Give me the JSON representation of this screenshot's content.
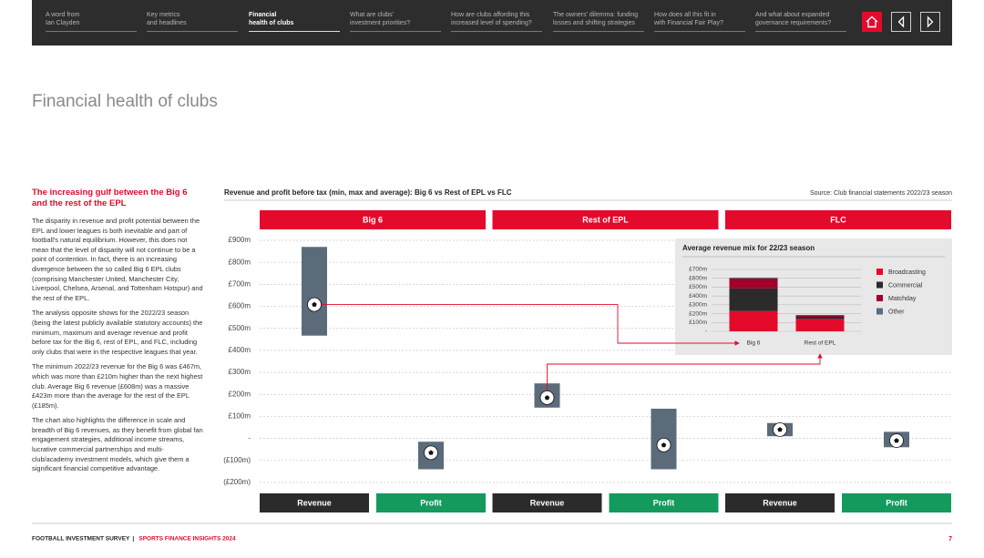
{
  "nav": {
    "items": [
      [
        "A word from",
        "Ian Clayden"
      ],
      [
        "Key metrics",
        "and headlines"
      ],
      [
        "Financial",
        "health of clubs"
      ],
      [
        "What are clubs'",
        "investment priorities?"
      ],
      [
        "How are clubs affording this",
        "increased level of spending?"
      ],
      [
        "The owners' dilemma: funding",
        "losses and shifting strategies"
      ],
      [
        "How does all this fit in",
        "with Financial Fair Play?"
      ],
      [
        "And what about expanded",
        "governance requirements?"
      ]
    ],
    "active": 2
  },
  "page_title": "Financial health of clubs",
  "sidebar": {
    "heading": "The increasing gulf between the Big 6 and the rest of the EPL",
    "paragraphs": [
      "The disparity in revenue and profit potential between the EPL and lower leagues is both inevitable and part of football's natural equilibrium. However, this does not mean that the level of disparity will not continue to be a point of contention. In fact, there is an increasing divergence between the so called Big 6 EPL clubs (comprising Manchester United, Manchester City, Liverpool, Chelsea, Arsenal, and Tottenham Hotspur) and the rest of the EPL.",
      "The analysis opposite shows for the 2022/23 season (being the latest publicly available statutory accounts) the minimum, maximum and average revenue and profit before tax for the Big 6, rest of EPL, and FLC, including only clubs that were in the respective leagues that year.",
      "The minimum 2022/23 revenue for the Big 6 was £467m, which was more than £210m higher than the next highest club. Average Big 6 revenue (£608m) was a massive £423m more than the average for the rest of the EPL (£185m).",
      "The chart also highlights the difference in scale and breadth of Big 6 revenues, as they benefit from global fan engagement strategies, additional income streams, lucrative commercial partnerships and multi-club/academy investment models, which give them a significant financial competitive advantage."
    ]
  },
  "chart_data": [
    {
      "type": "range",
      "title": "Revenue and profit before tax (min, max and average): Big 6 vs Rest of EPL vs FLC",
      "source": "Source: Club financial statements 2022/23 season",
      "groups": [
        "Big 6",
        "Rest of EPL",
        "FLC"
      ],
      "group_color": "#e30a2c",
      "categories": [
        "Revenue",
        "Profit",
        "Revenue",
        "Profit",
        "Revenue",
        "Profit"
      ],
      "category_colors": [
        "#2b2b2b",
        "#139a5c",
        "#2b2b2b",
        "#139a5c",
        "#2b2b2b",
        "#139a5c"
      ],
      "min": [
        467,
        -140,
        140,
        -140,
        10,
        -40
      ],
      "max": [
        870,
        -15,
        250,
        135,
        70,
        30
      ],
      "average": [
        608,
        -65,
        185,
        -30,
        40,
        -10
      ],
      "color": "#5b6b7a",
      "ylim": [
        -200,
        900
      ],
      "yticks": [
        {
          "value": 900,
          "label": "£900m"
        },
        {
          "value": 800,
          "label": "£800m"
        },
        {
          "value": 700,
          "label": "£700m"
        },
        {
          "value": 600,
          "label": "£600m"
        },
        {
          "value": 500,
          "label": "£500m"
        },
        {
          "value": 400,
          "label": "£400m"
        },
        {
          "value": 300,
          "label": "£300m"
        },
        {
          "value": 200,
          "label": "£200m"
        },
        {
          "value": 100,
          "label": "£100m"
        },
        {
          "value": 0,
          "label": "-"
        },
        {
          "value": -100,
          "label": "(£100m)"
        },
        {
          "value": -200,
          "label": "(£200m)"
        }
      ],
      "grid": true
    },
    {
      "type": "stacked_bar",
      "title": "Average revenue mix for 22/23 season",
      "categories": [
        "Big 6",
        "Rest of EPL"
      ],
      "series": [
        {
          "name": "Broadcasting",
          "color": "#e30a2c",
          "values": [
            230,
            140
          ]
        },
        {
          "name": "Commercial",
          "color": "#2b2b2b",
          "values": [
            255,
            25
          ]
        },
        {
          "name": "Matchday",
          "color": "#a0002a",
          "values": [
            113,
            15
          ]
        },
        {
          "name": "Other",
          "color": "#5b6b7a",
          "values": [
            10,
            5
          ]
        }
      ],
      "ylim": [
        0,
        700
      ],
      "yticks": [
        {
          "value": 0,
          "label": "-"
        },
        {
          "value": 100,
          "label": "£100m"
        },
        {
          "value": 200,
          "label": "£200m"
        },
        {
          "value": 300,
          "label": "£300m"
        },
        {
          "value": 400,
          "label": "£400m"
        },
        {
          "value": 500,
          "label": "£500m"
        },
        {
          "value": 600,
          "label": "£600m"
        },
        {
          "value": 700,
          "label": "£700m"
        }
      ],
      "grid": true,
      "legend": "right"
    }
  ],
  "footer": {
    "left": "FOOTBALL INVESTMENT SURVEY",
    "separator": "|",
    "right": "SPORTS FINANCE INSIGHTS 2024",
    "page": "7"
  }
}
